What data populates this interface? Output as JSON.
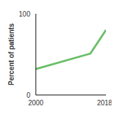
{
  "chart_data": {
    "type": "line",
    "x": [
      2000,
      2014,
      2018
    ],
    "values": [
      32,
      51,
      80
    ],
    "color": "#6abf69",
    "ylabel": "Percent of patients",
    "xlim": [
      2000,
      2018
    ],
    "xticks": [
      2000,
      2018
    ],
    "ylim": [
      0,
      100
    ],
    "yticks": [
      0,
      100
    ],
    "grid": false
  }
}
